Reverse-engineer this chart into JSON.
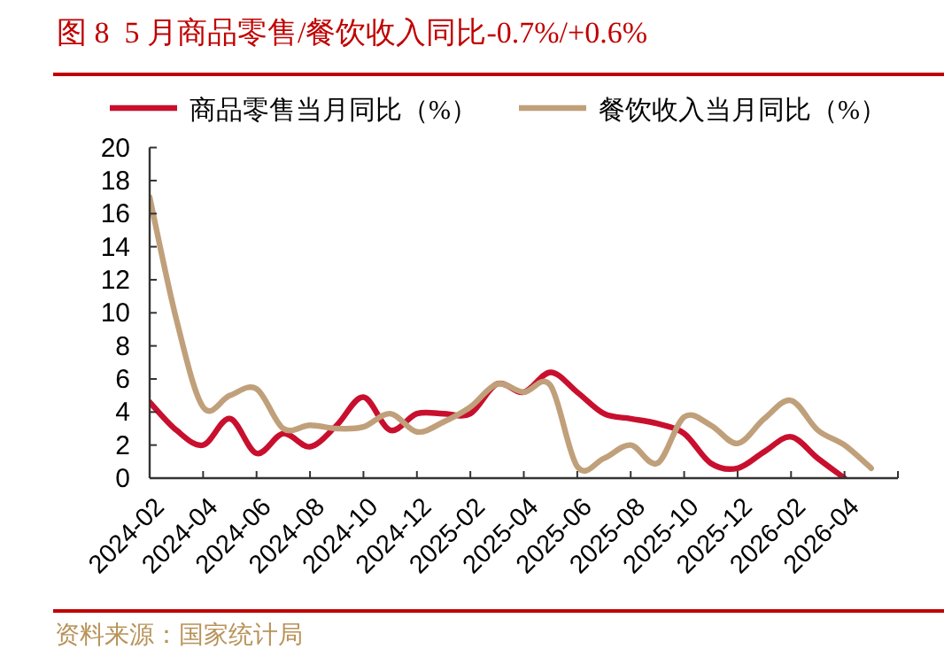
{
  "chart_data": {
    "type": "line",
    "title": "图 8  5 月商品零售/餐饮收入同比-0.7%/+0.6%",
    "annotations": [
      "资料来源：国家统计局"
    ],
    "x": [
      "2024-02",
      "2024-03",
      "2024-04",
      "2024-05",
      "2024-06",
      "2024-07",
      "2024-08",
      "2024-09",
      "2024-10",
      "2024-11",
      "2024-12",
      "2025-01",
      "2025-02",
      "2025-03",
      "2025-04",
      "2025-05",
      "2025-06",
      "2025-07",
      "2025-08",
      "2025-09",
      "2025-10",
      "2025-11",
      "2025-12",
      "2026-01",
      "2026-02",
      "2026-03",
      "2026-04",
      "2026-05"
    ],
    "series": [
      {
        "name": "商品零售当月同比（%）",
        "color": "#c8102e",
        "values": [
          4.6,
          2.9,
          2.0,
          3.6,
          1.5,
          2.7,
          1.9,
          3.2,
          4.9,
          2.9,
          3.9,
          3.9,
          3.9,
          5.7,
          5.2,
          6.4,
          5.2,
          3.9,
          3.6,
          3.3,
          2.7,
          0.9,
          0.6,
          1.6,
          2.5,
          1.2,
          0.0,
          null
        ]
      },
      {
        "name": "餐饮收入当月同比（%）",
        "color": "#c0a07a",
        "values": [
          17.0,
          9.6,
          4.3,
          5.0,
          5.4,
          3.0,
          3.2,
          3.0,
          3.1,
          3.9,
          2.8,
          3.4,
          4.3,
          5.7,
          5.2,
          5.6,
          0.7,
          1.2,
          2.0,
          0.9,
          3.7,
          3.2,
          2.1,
          3.6,
          4.7,
          2.9,
          2.0,
          0.6
        ]
      }
    ],
    "xlim": [
      "2024-02",
      "2026-06"
    ],
    "xticks": [
      "2024-02",
      "2024-04",
      "2024-06",
      "2024-08",
      "2024-10",
      "2024-12",
      "2025-02",
      "2025-04",
      "2025-06",
      "2025-08",
      "2025-10",
      "2025-12",
      "2026-02",
      "2026-04",
      {
        "value": "2026-06",
        "label": null
      }
    ],
    "ylim": [
      0,
      20
    ],
    "yticks": [
      0,
      2,
      4,
      6,
      8,
      10,
      12,
      14,
      16,
      18,
      20
    ],
    "legend": "top",
    "grid": false,
    "line_style": "solid"
  }
}
